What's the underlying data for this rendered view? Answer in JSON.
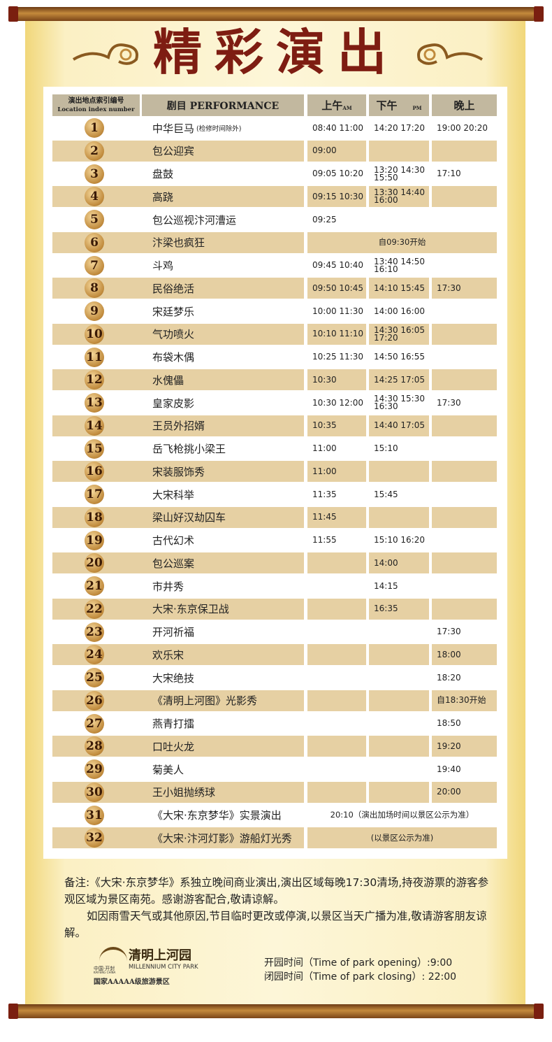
{
  "header": {
    "title": "精彩演出"
  },
  "table": {
    "columns": {
      "index": "演出地点索引编号",
      "index_en": "Location index number",
      "name": "剧目 PERFORMANCE",
      "am": "上午",
      "am_en": "AM",
      "pm": "下午",
      "pm_en": "PM",
      "evening": "晚上"
    },
    "rows": [
      {
        "index": 1,
        "name": "中华巨马",
        "note": "(检修时间除外)",
        "am": "08:40 11:00",
        "pm": "14:20 17:20",
        "evening": "19:00 20:20"
      },
      {
        "index": 2,
        "name": "包公迎宾",
        "am": "09:00"
      },
      {
        "index": 3,
        "name": "盘鼓",
        "am": "09:05 10:20",
        "pm": "13:20 14:30 15:50",
        "evening": "17:10"
      },
      {
        "index": 4,
        "name": "高跷",
        "am": "09:15 10:30",
        "pm": "13:30 14:40 16:00"
      },
      {
        "index": 5,
        "name": "包公巡视汴河漕运",
        "am": "09:25"
      },
      {
        "index": 6,
        "name": "汴梁也疯狂",
        "span": "自09:30开始"
      },
      {
        "index": 7,
        "name": "斗鸡",
        "am": "09:45 10:40",
        "pm": "13:40 14:50 16:10"
      },
      {
        "index": 8,
        "name": "民俗绝活",
        "am": "09:50 10:45",
        "pm": "14:10 15:45",
        "evening": "17:30"
      },
      {
        "index": 9,
        "name": "宋廷梦乐",
        "am": "10:00 11:30",
        "pm": "14:00 16:00"
      },
      {
        "index": 10,
        "name": "气功喷火",
        "am": "10:10 11:10",
        "pm": "14:30 16:05 17:20"
      },
      {
        "index": 11,
        "name": "布袋木偶",
        "am": "10:25 11:30",
        "pm": "14:50 16:55"
      },
      {
        "index": 12,
        "name": "水傀儡",
        "am": "10:30",
        "pm": "14:25 17:05"
      },
      {
        "index": 13,
        "name": "皇家皮影",
        "am": "10:30 12:00",
        "pm": "14:30 15:30 16:30",
        "evening": "17:30"
      },
      {
        "index": 14,
        "name": "王员外招婿",
        "am": "10:35",
        "pm": "14:40 17:05"
      },
      {
        "index": 15,
        "name": "岳飞枪挑小梁王",
        "am": "11:00",
        "pm": "15:10"
      },
      {
        "index": 16,
        "name": "宋装服饰秀",
        "am": "11:00"
      },
      {
        "index": 17,
        "name": "大宋科举",
        "am": "11:35",
        "pm": "15:45"
      },
      {
        "index": 18,
        "name": "梁山好汉劫囚车",
        "am": "11:45"
      },
      {
        "index": 19,
        "name": "古代幻术",
        "am": "11:55",
        "pm": "15:10 16:20"
      },
      {
        "index": 20,
        "name": "包公巡案",
        "pm": "14:00"
      },
      {
        "index": 21,
        "name": "市井秀",
        "pm": "14:15"
      },
      {
        "index": 22,
        "name": "大宋·东京保卫战",
        "pm": "16:35"
      },
      {
        "index": 23,
        "name": "开河祈福",
        "evening": "17:30"
      },
      {
        "index": 24,
        "name": "欢乐宋",
        "evening": "18:00"
      },
      {
        "index": 25,
        "name": "大宋绝技",
        "evening": "18:20"
      },
      {
        "index": 26,
        "name": "《清明上河图》光影秀",
        "evening": "自18:30开始"
      },
      {
        "index": 27,
        "name": "燕青打擂",
        "evening": "18:50"
      },
      {
        "index": 28,
        "name": "口吐火龙",
        "evening": "19:20"
      },
      {
        "index": 29,
        "name": "菊美人",
        "evening": "19:40"
      },
      {
        "index": 30,
        "name": "王小姐抛绣球",
        "evening": "20:00"
      },
      {
        "index": 31,
        "name": "《大宋·东京梦华》实景演出",
        "span": "20:10（演出加场时间以景区公示为准）"
      },
      {
        "index": 32,
        "name": "《大宋·汴河灯影》游船灯光秀",
        "span": "(以景区公示为准)"
      }
    ]
  },
  "notes": [
    "备注:《大宋·东京梦华》系独立晚间商业演出,演出区域每晚17:30清场,持夜游票的游客参观区域为景区南苑。感谢游客配合,敬请谅解。",
    "如因雨雪天气或其他原因,节目临时更改或停演,以景区当天广播为准,敬请游客朋友谅解。"
  ],
  "footer": {
    "logo": "清明上河园",
    "logo_city": "中国·开封",
    "logo_city_en": "KAIFENG CHINA",
    "logo_en": "MILLENNIUM CITY PARK",
    "rating": "国家AAAAA级旅游景区",
    "opening": "开园时间（Time of park opening）:9:00",
    "closing": "闭园时间（Time of park closing）: 22:00"
  }
}
